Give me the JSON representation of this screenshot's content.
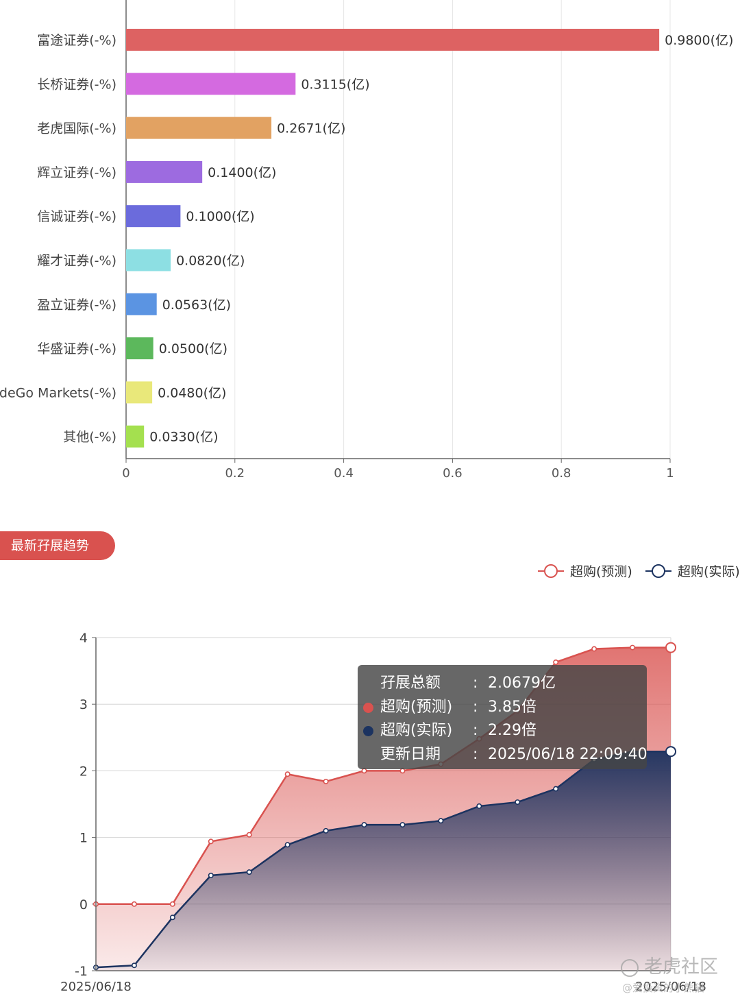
{
  "chart_data": [
    {
      "type": "bar",
      "orientation": "horizontal",
      "categories": [
        "富途证券(-%)",
        "长桥证券(-%)",
        "老虎国际(-%)",
        "辉立证券(-%)",
        "信诚证券(-%)",
        "耀才证券(-%)",
        "盈立证券(-%)",
        "华盛证券(-%)",
        "TradeGo Markets(-%)",
        "其他(-%)"
      ],
      "values": [
        0.98,
        0.3115,
        0.2671,
        0.14,
        0.1,
        0.082,
        0.0563,
        0.05,
        0.048,
        0.033
      ],
      "data_labels": [
        "0.9800(亿)",
        "0.3115(亿)",
        "0.2671(亿)",
        "0.1400(亿)",
        "0.1000(亿)",
        "0.0820(亿)",
        "0.0563(亿)",
        "0.0500(亿)",
        "0.0480(亿)",
        "0.0330(亿)"
      ],
      "colors": [
        "#dd6262",
        "#d46ae0",
        "#e2a262",
        "#9d6be0",
        "#6b6bdc",
        "#8ddfe3",
        "#5b94e2",
        "#5cb85c",
        "#e9e87a",
        "#a4e04f"
      ],
      "xlim": [
        0,
        1
      ],
      "xticks": [
        "0",
        "0.2",
        "0.4",
        "0.6",
        "0.8",
        "1"
      ],
      "grid": true
    },
    {
      "type": "area",
      "x": [
        "2025/06/18",
        "",
        "",
        "",
        "",
        "",
        "",
        "",
        "",
        "",
        "",
        "",
        "",
        "",
        "",
        "2025/06/18"
      ],
      "xtick_labels": [
        "2025/06/18",
        "2025/06/18"
      ],
      "series": [
        {
          "name": "超购(预测)",
          "color": "#d9524f",
          "values": [
            0,
            0,
            0,
            0.94,
            1.04,
            1.95,
            1.84,
            2.0,
            2.0,
            2.1,
            2.48,
            2.9,
            3.63,
            3.83,
            3.85,
            3.85
          ]
        },
        {
          "name": "超购(实际)",
          "color": "#1c3360",
          "values": [
            -0.95,
            -0.92,
            -0.2,
            0.43,
            0.48,
            0.89,
            1.1,
            1.19,
            1.19,
            1.25,
            1.47,
            1.53,
            1.73,
            2.17,
            2.29,
            2.29
          ]
        }
      ],
      "ylim": [
        -1,
        4
      ],
      "yticks": [
        "-1",
        "0",
        "1",
        "2",
        "3",
        "4"
      ],
      "legend_position": "top-right",
      "grid": true
    }
  ],
  "section_title": "最新孖展趋势",
  "tooltip": {
    "total_label": "孖展总额",
    "total_value": "2.0679亿",
    "forecast_label": "超购(预测)",
    "forecast_value": "3.85倍",
    "actual_label": "超购(实际)",
    "actual_value": "2.29倍",
    "date_label": "更新日期",
    "date_value": "2025/06/18 22:09:40",
    "colon": ":"
  },
  "watermark": {
    "brand": "老虎社区",
    "user": "@爱投资的小熊猫"
  },
  "colors": {
    "accent": "#d9524f",
    "tooltip_bg": "#464646"
  }
}
